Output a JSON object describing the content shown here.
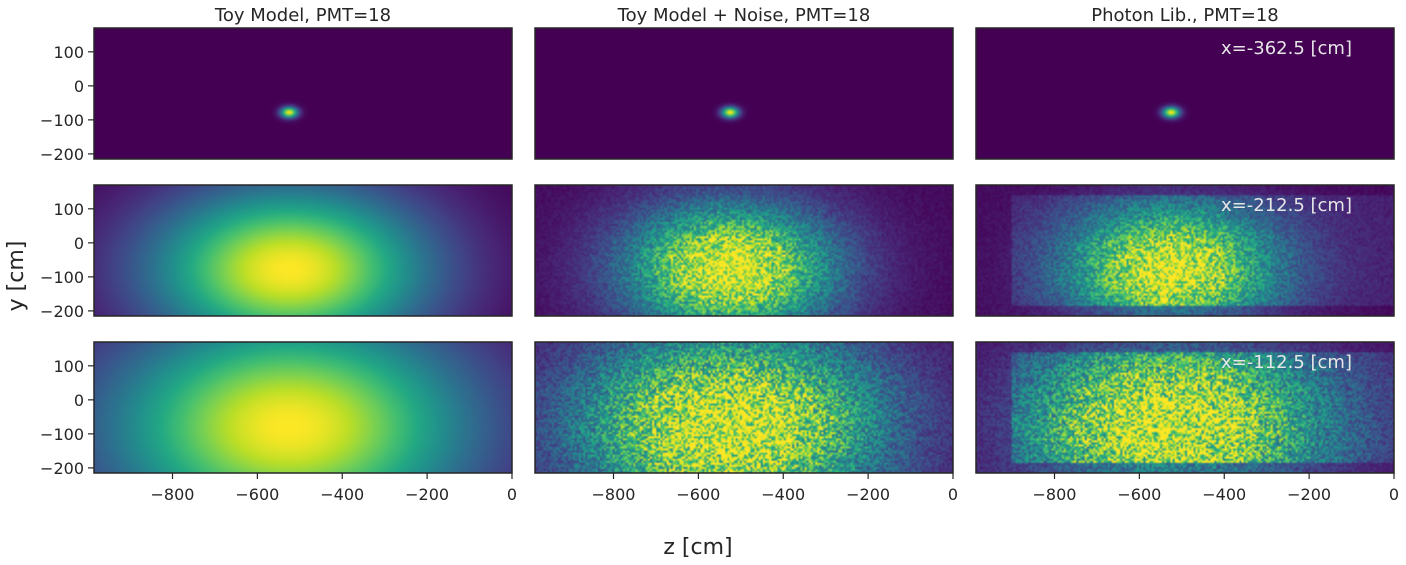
{
  "figure": {
    "xlabel": "z [cm]",
    "ylabel": "y [cm]"
  },
  "chart_data": {
    "type": "heatmap",
    "colormap": "viridis",
    "column_titles": [
      "Toy Model, PMT=18",
      "Toy Model + Noise, PMT=18",
      "Photon Lib., PMT=18"
    ],
    "row_annotations": [
      "x=-362.5 [cm]",
      "x=-212.5 [cm]",
      "x=-112.5 [cm]"
    ],
    "xlim": [
      -985,
      0
    ],
    "ylim": [
      -215,
      170
    ],
    "xticks": [
      -800,
      -600,
      -400,
      -200,
      0
    ],
    "yticks": [
      100,
      0,
      -100,
      -200
    ],
    "xtick_labels": [
      "−800",
      "−600",
      "−400",
      "−200",
      "0"
    ],
    "ytick_labels": [
      "100",
      "0",
      "−100",
      "−200"
    ],
    "grid": false,
    "peak": {
      "z": -525,
      "y": -78
    },
    "panels": [
      {
        "row": 0,
        "col": 0,
        "spread_z": 14,
        "spread_y": 11,
        "noise": 0.0,
        "photon_lib": false
      },
      {
        "row": 0,
        "col": 1,
        "spread_z": 14,
        "spread_y": 11,
        "noise": 0.0,
        "photon_lib": false
      },
      {
        "row": 0,
        "col": 2,
        "spread_z": 14,
        "spread_y": 11,
        "noise": 0.0,
        "photon_lib": false
      },
      {
        "row": 1,
        "col": 0,
        "spread_z": 230,
        "spread_y": 170,
        "noise": 0.0,
        "photon_lib": false
      },
      {
        "row": 1,
        "col": 1,
        "spread_z": 175,
        "spread_y": 135,
        "noise": 0.35,
        "photon_lib": false
      },
      {
        "row": 1,
        "col": 2,
        "spread_z": 175,
        "spread_y": 135,
        "noise": 0.35,
        "photon_lib": true
      },
      {
        "row": 2,
        "col": 0,
        "spread_z": 300,
        "spread_y": 230,
        "noise": 0.0,
        "photon_lib": false
      },
      {
        "row": 2,
        "col": 1,
        "spread_z": 260,
        "spread_y": 200,
        "noise": 0.45,
        "photon_lib": false
      },
      {
        "row": 2,
        "col": 2,
        "spread_z": 260,
        "spread_y": 200,
        "noise": 0.45,
        "photon_lib": true
      }
    ],
    "photon_lib_region": {
      "z": [
        -900,
        0
      ],
      "y": [
        -185,
        140
      ]
    }
  }
}
